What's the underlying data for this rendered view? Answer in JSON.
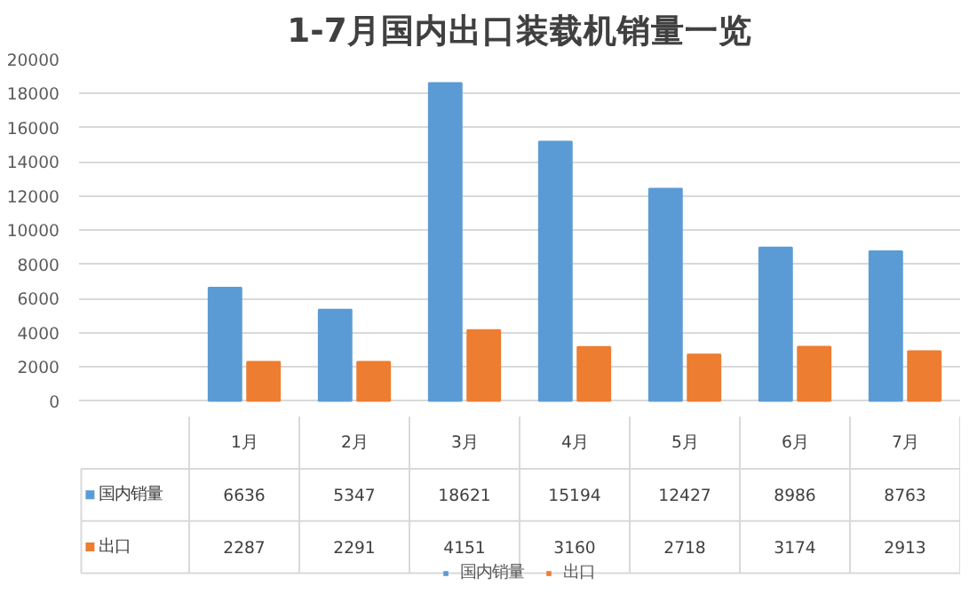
{
  "chart_data": {
    "type": "bar",
    "title": "1-7月国内出口装载机销量一览",
    "categories": [
      "1月",
      "2月",
      "3月",
      "4月",
      "5月",
      "6月",
      "7月"
    ],
    "series": [
      {
        "name": "国内销量",
        "color": "#5b9bd5",
        "values": [
          6636,
          5347,
          18621,
          15194,
          12427,
          8986,
          8763
        ]
      },
      {
        "name": "出口",
        "color": "#ed7d31",
        "values": [
          2287,
          2291,
          4151,
          3160,
          2718,
          3174,
          2913
        ]
      }
    ],
    "ylim": [
      0,
      20000
    ],
    "yticks": [
      0,
      2000,
      4000,
      6000,
      8000,
      10000,
      12000,
      14000,
      16000,
      18000,
      20000
    ],
    "grid": "y",
    "legend": "bottom",
    "data_labels": true
  }
}
